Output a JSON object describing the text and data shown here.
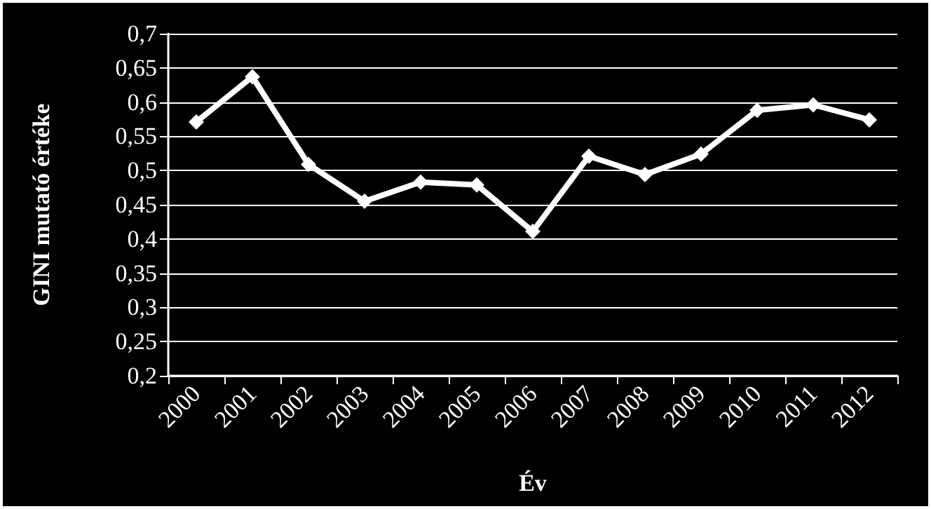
{
  "chart_data": {
    "type": "line",
    "xlabel": "Év",
    "ylabel": "GINI mutató értéke",
    "categories": [
      "2000",
      "2001",
      "2002",
      "2003",
      "2004",
      "2005",
      "2006",
      "2007",
      "2008",
      "2009",
      "2010",
      "2011",
      "2012"
    ],
    "series": [
      {
        "color": "#ffffff",
        "values": [
          0.571,
          0.637,
          0.509,
          0.455,
          0.483,
          0.479,
          0.411,
          0.521,
          0.494,
          0.524,
          0.588,
          0.596,
          0.574
        ]
      }
    ],
    "ylim": [
      0.2,
      0.7
    ],
    "yticks": [
      {
        "value": 0.2,
        "label": "0,2"
      },
      {
        "value": 0.25,
        "label": "0,25"
      },
      {
        "value": 0.3,
        "label": "0,3"
      },
      {
        "value": 0.35,
        "label": "0,35"
      },
      {
        "value": 0.4,
        "label": "0,4"
      },
      {
        "value": 0.45,
        "label": "0,45"
      },
      {
        "value": 0.5,
        "label": "0,5"
      },
      {
        "value": 0.55,
        "label": "0,55"
      },
      {
        "value": 0.6,
        "label": "0,6"
      },
      {
        "value": 0.65,
        "label": "0,65"
      },
      {
        "value": 0.7,
        "label": "0,7"
      }
    ],
    "grid": "y",
    "marker": "diamond",
    "line_style": "solid"
  }
}
